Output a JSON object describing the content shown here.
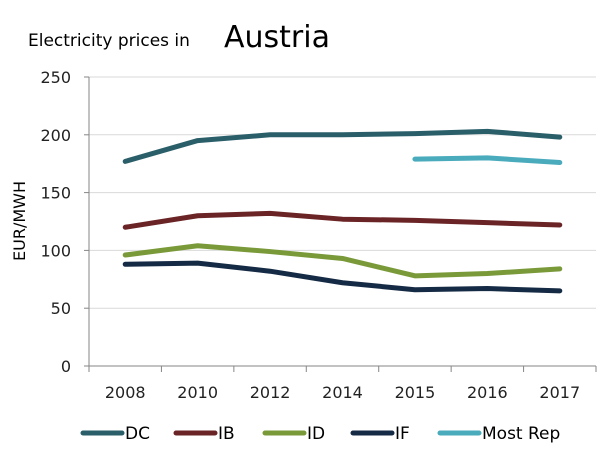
{
  "chart_data": {
    "type": "line",
    "title_prefix": "Electricity prices in",
    "title_country": "Austria",
    "xlabel": "",
    "ylabel": "EUR/MWH",
    "ylim": [
      0,
      250
    ],
    "yticks": [
      0,
      50,
      100,
      150,
      200,
      250
    ],
    "grid": true,
    "legend_position": "bottom",
    "categories": [
      "2008",
      "2010",
      "2012",
      "2014",
      "2015",
      "2016",
      "2017"
    ],
    "series": [
      {
        "name": "DC",
        "color": "#2a5f6a",
        "values": [
          177,
          195,
          200,
          200,
          201,
          203,
          198
        ]
      },
      {
        "name": "IB",
        "color": "#6b2426",
        "values": [
          120,
          130,
          132,
          127,
          126,
          124,
          122
        ]
      },
      {
        "name": "ID",
        "color": "#7a9a3a",
        "values": [
          96,
          104,
          99,
          93,
          78,
          80,
          84
        ]
      },
      {
        "name": "IF",
        "color": "#152a44",
        "values": [
          88,
          89,
          82,
          72,
          66,
          67,
          65
        ]
      },
      {
        "name": "Most Rep",
        "color": "#4aabbd",
        "values": [
          null,
          null,
          null,
          null,
          179,
          180,
          176
        ]
      }
    ]
  }
}
